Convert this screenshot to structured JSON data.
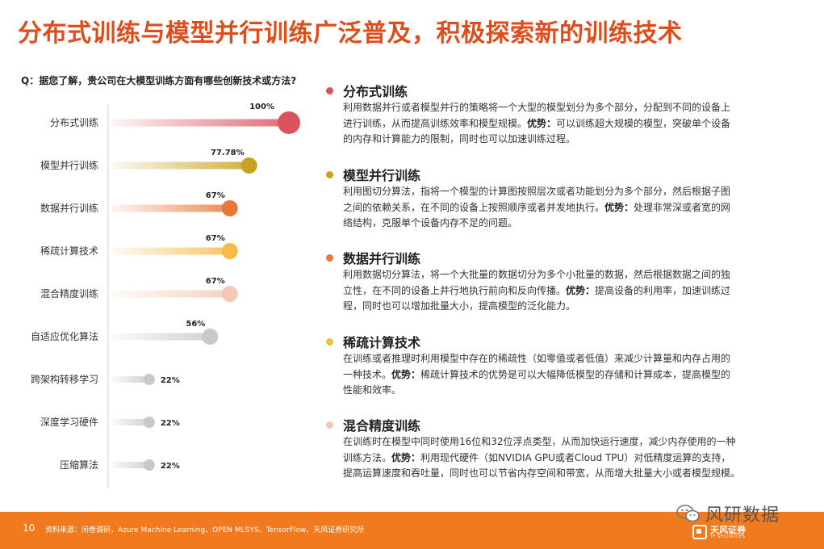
{
  "page": {
    "title": "分布式训练与模型并行训练广泛普及，积极探索新的训练技术",
    "question": "Q：据您了解，贵公司在大模型训练方面有哪些创新技术或方法?"
  },
  "chart_data": {
    "type": "bar",
    "categories": [
      "分布式训练",
      "模型并行训练",
      "数据并行训练",
      "稀疏计算技术",
      "混合精度训练",
      "自适应优化算法",
      "跨架构转移学习",
      "深度学习硬件",
      "压缩算法"
    ],
    "values": [
      100,
      77.78,
      67,
      67,
      67,
      56,
      22,
      22,
      22
    ],
    "labels": [
      "100%",
      "77.78%",
      "67%",
      "67%",
      "67%",
      "56%",
      "22%",
      "22%",
      "22%"
    ],
    "colors": [
      "#d9525d",
      "#c9a21e",
      "#e8783a",
      "#f5bc4a",
      "#f4c8b4",
      "#c9c9c9",
      "#c9c9c9",
      "#c9c9c9",
      "#c9c9c9"
    ],
    "xlim": [
      0,
      100
    ],
    "grid": false,
    "legend": "none"
  },
  "sections": [
    {
      "title": "分布式训练",
      "color": "#d9525d",
      "lines": [
        {
          "pre": "利用数据并行或者模型并行的策略将一个大型的模型划分为多个部分，分配到不同的设备上",
          "bold": "",
          "post": ""
        },
        {
          "pre": "进行训练，从而提高训练效率和模型规模。",
          "bold": "优势：",
          "post": "可以训练超大规模的模型，突破单个设备"
        },
        {
          "pre": "的内存和计算能力的限制，同时也可以加速训练过程。",
          "bold": "",
          "post": ""
        }
      ]
    },
    {
      "title": "模型并行训练",
      "color": "#c9a21e",
      "lines": [
        {
          "pre": "利用图切分算法，指将一个模型的计算图按照层次或者功能划分为多个部分，然后根据子图",
          "bold": "",
          "post": ""
        },
        {
          "pre": "之间的依赖关系，在不同的设备上按照顺序或者并发地执行。",
          "bold": "优势：",
          "post": "处理非常深或者宽的网"
        },
        {
          "pre": "络结构，克服单个设备内存不足的问题。",
          "bold": "",
          "post": ""
        }
      ]
    },
    {
      "title": "数据并行训练",
      "color": "#e8783a",
      "lines": [
        {
          "pre": "利用数据切分算法，将一个大批量的数据切分为多个小批量的数据，然后根据数据之间的独",
          "bold": "",
          "post": ""
        },
        {
          "pre": "立性，在不同的设备上并行地执行前向和反向传播。",
          "bold": "优势：",
          "post": "提高设备的利用率，加速训练过"
        },
        {
          "pre": "程，同时也可以增加批量大小，提高模型的泛化能力。",
          "bold": "",
          "post": ""
        }
      ]
    },
    {
      "title": "稀疏计算技术",
      "color": "#f5bc4a",
      "lines": [
        {
          "pre": "在训练或者推理时利用模型中存在的稀疏性（如零值或者低值）来减少计算量和内存占用的",
          "bold": "",
          "post": ""
        },
        {
          "pre": "一种技术。",
          "bold": "优势：",
          "post": "稀疏计算技术的优势是可以大幅降低模型的存储和计算成本，提高模型的"
        },
        {
          "pre": "性能和效率。",
          "bold": "",
          "post": ""
        }
      ]
    },
    {
      "title": "混合精度训练",
      "color": "#f4c8b4",
      "lines": [
        {
          "pre": "在训练时在模型中同时使用16位和32位浮点类型，从而加快运行速度，减少内存使用的一种",
          "bold": "",
          "post": ""
        },
        {
          "pre": "训练方法。",
          "bold": "优势：",
          "post": "利用现代硬件（如NVIDIA GPU或者Cloud TPU）对低精度运算的支持，"
        },
        {
          "pre": "提高运算速度和吞吐量，同时也可以节省内存空间和带宽，从而增大批量大小或者模型规模。",
          "bold": "",
          "post": ""
        }
      ]
    }
  ],
  "footer": {
    "page_number": "10",
    "source": "资料来源：问卷调研，Azure Machine Learning、OPEN MLSYS、TensorFlow、天风证券研究所",
    "watermark": "风研数据",
    "logo_text": "天风证券",
    "logo_sub": "TF SECURITIES"
  }
}
